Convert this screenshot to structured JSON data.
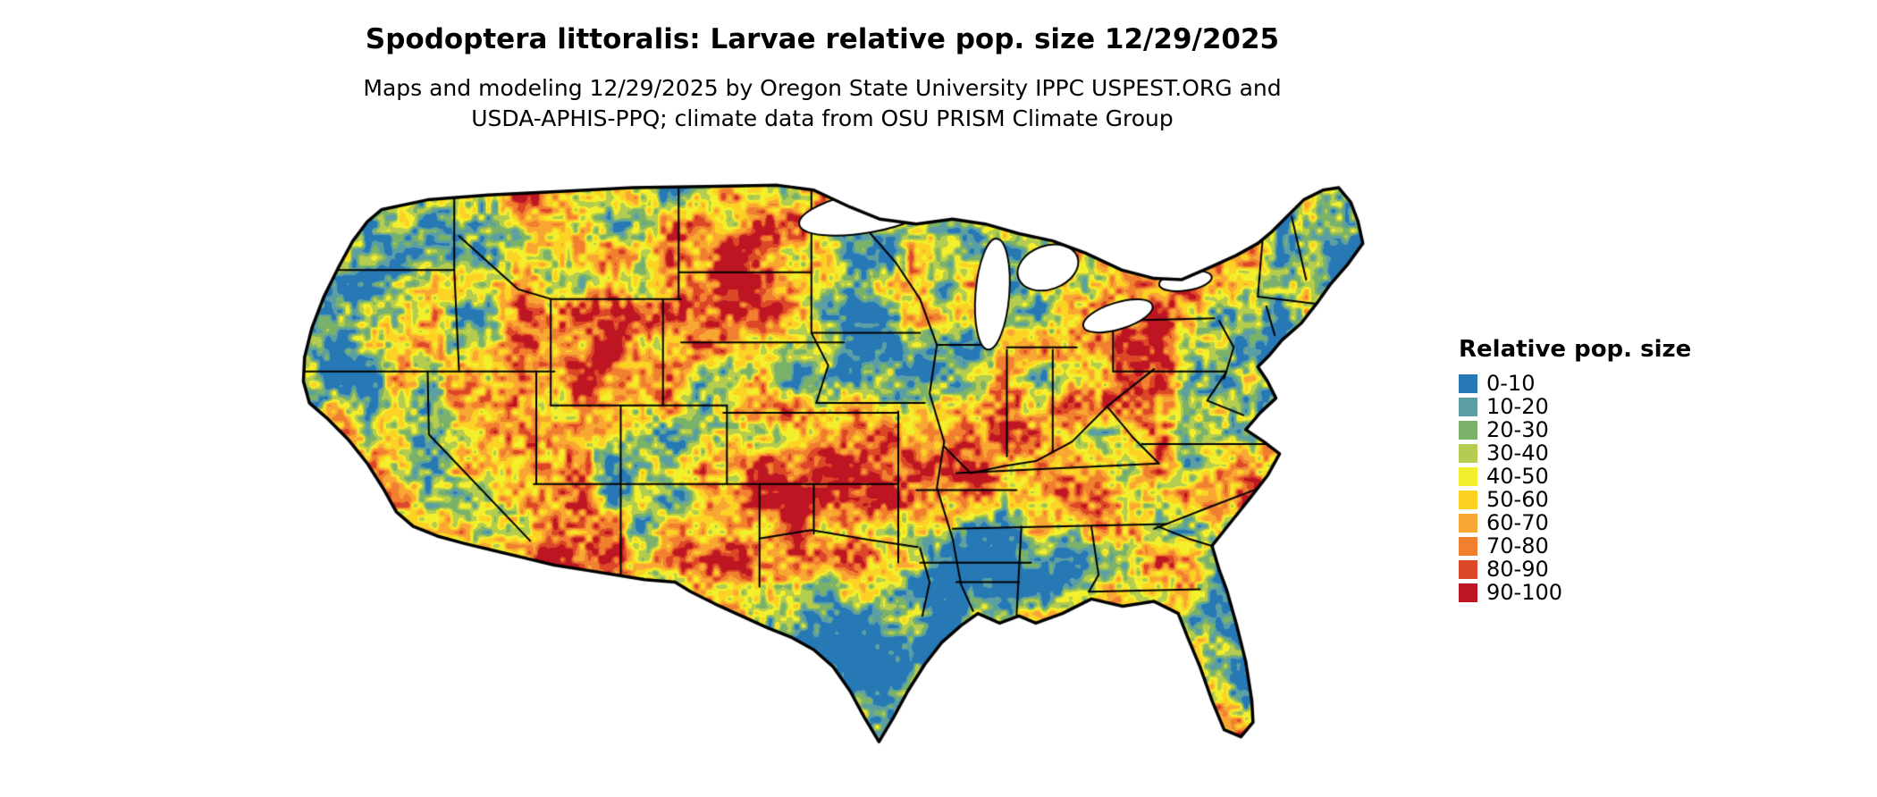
{
  "header": {
    "title": "Spodoptera littoralis: Larvae relative pop. size 12/29/2025",
    "subtitle_line1": "Maps and modeling 12/29/2025 by Oregon State University IPPC USPEST.ORG and",
    "subtitle_line2": "USDA-APHIS-PPQ; climate data from OSU PRISM Climate Group"
  },
  "map": {
    "aria_label": "Raster map of the contiguous United States showing larvae relative population size"
  },
  "legend": {
    "title": "Relative pop. size",
    "entries": [
      {
        "label": "0-10",
        "color": "#2779b5"
      },
      {
        "label": "10-20",
        "color": "#5b9fa5"
      },
      {
        "label": "20-30",
        "color": "#7ab269"
      },
      {
        "label": "30-40",
        "color": "#b4cc4f"
      },
      {
        "label": "40-50",
        "color": "#f2ef2c"
      },
      {
        "label": "50-60",
        "color": "#fcd225"
      },
      {
        "label": "60-70",
        "color": "#f9a733"
      },
      {
        "label": "70-80",
        "color": "#f07f2f"
      },
      {
        "label": "80-90",
        "color": "#dc4728"
      },
      {
        "label": "90-100",
        "color": "#bd1622"
      }
    ]
  }
}
